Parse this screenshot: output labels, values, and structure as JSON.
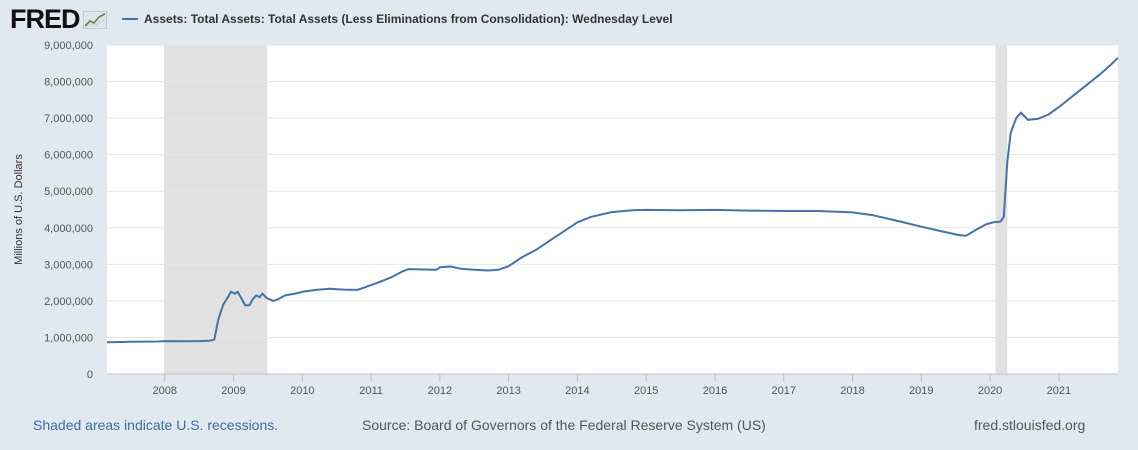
{
  "header": {
    "logo_text": "FRED",
    "legend_label": "Assets: Total Assets: Total Assets (Less Eliminations from Consolidation): Wednesday Level"
  },
  "footer": {
    "recession_note": "Shaded areas indicate U.S. recessions.",
    "source": "Source: Board of Governors of the Federal Reserve System (US)",
    "site": "fred.stlouisfed.org"
  },
  "colors": {
    "series": "#4572a7",
    "recession": "#e1e1e1",
    "background": "#e1e9f0"
  },
  "chart_data": {
    "type": "line",
    "title": "",
    "xlabel": "",
    "ylabel": "Millions of U.S. Dollars",
    "xlim": [
      2007.16,
      2021.86
    ],
    "ylim": [
      0,
      9000000
    ],
    "grid": true,
    "y_ticks": [
      {
        "value": 0,
        "label": "0"
      },
      {
        "value": 1000000,
        "label": "1,000,000"
      },
      {
        "value": 2000000,
        "label": "2,000,000"
      },
      {
        "value": 3000000,
        "label": "3,000,000"
      },
      {
        "value": 4000000,
        "label": "4,000,000"
      },
      {
        "value": 5000000,
        "label": "5,000,000"
      },
      {
        "value": 6000000,
        "label": "6,000,000"
      },
      {
        "value": 7000000,
        "label": "7,000,000"
      },
      {
        "value": 8000000,
        "label": "8,000,000"
      },
      {
        "value": 9000000,
        "label": "9,000,000"
      }
    ],
    "x_ticks": [
      {
        "value": 2008,
        "label": "2008"
      },
      {
        "value": 2009,
        "label": "2009"
      },
      {
        "value": 2010,
        "label": "2010"
      },
      {
        "value": 2011,
        "label": "2011"
      },
      {
        "value": 2012,
        "label": "2012"
      },
      {
        "value": 2013,
        "label": "2013"
      },
      {
        "value": 2014,
        "label": "2014"
      },
      {
        "value": 2015,
        "label": "2015"
      },
      {
        "value": 2016,
        "label": "2016"
      },
      {
        "value": 2017,
        "label": "2017"
      },
      {
        "value": 2018,
        "label": "2018"
      },
      {
        "value": 2019,
        "label": "2019"
      },
      {
        "value": 2020,
        "label": "2020"
      },
      {
        "value": 2021,
        "label": "2021"
      }
    ],
    "recessions": [
      {
        "start": 2007.99,
        "end": 2009.49
      },
      {
        "start": 2020.08,
        "end": 2020.25
      }
    ],
    "series": [
      {
        "name": "Assets: Total Assets: Total Assets (Less Eliminations from Consolidation): Wednesday Level",
        "points": [
          [
            2007.16,
            870000
          ],
          [
            2007.5,
            880000
          ],
          [
            2007.9,
            890000
          ],
          [
            2008.0,
            900000
          ],
          [
            2008.3,
            895000
          ],
          [
            2008.5,
            900000
          ],
          [
            2008.65,
            910000
          ],
          [
            2008.72,
            940000
          ],
          [
            2008.78,
            1500000
          ],
          [
            2008.85,
            1900000
          ],
          [
            2008.92,
            2100000
          ],
          [
            2008.96,
            2250000
          ],
          [
            2009.02,
            2200000
          ],
          [
            2009.06,
            2250000
          ],
          [
            2009.12,
            2050000
          ],
          [
            2009.17,
            1880000
          ],
          [
            2009.23,
            1880000
          ],
          [
            2009.28,
            2050000
          ],
          [
            2009.33,
            2150000
          ],
          [
            2009.38,
            2100000
          ],
          [
            2009.42,
            2200000
          ],
          [
            2009.48,
            2080000
          ],
          [
            2009.58,
            2000000
          ],
          [
            2009.65,
            2050000
          ],
          [
            2009.75,
            2150000
          ],
          [
            2009.9,
            2200000
          ],
          [
            2010.0,
            2250000
          ],
          [
            2010.2,
            2300000
          ],
          [
            2010.4,
            2330000
          ],
          [
            2010.6,
            2310000
          ],
          [
            2010.8,
            2300000
          ],
          [
            2010.95,
            2400000
          ],
          [
            2011.1,
            2500000
          ],
          [
            2011.3,
            2650000
          ],
          [
            2011.45,
            2800000
          ],
          [
            2011.55,
            2870000
          ],
          [
            2011.75,
            2860000
          ],
          [
            2011.95,
            2850000
          ],
          [
            2012.0,
            2920000
          ],
          [
            2012.15,
            2940000
          ],
          [
            2012.3,
            2880000
          ],
          [
            2012.5,
            2850000
          ],
          [
            2012.7,
            2830000
          ],
          [
            2012.85,
            2850000
          ],
          [
            2013.0,
            2950000
          ],
          [
            2013.2,
            3200000
          ],
          [
            2013.4,
            3400000
          ],
          [
            2013.6,
            3650000
          ],
          [
            2013.8,
            3900000
          ],
          [
            2014.0,
            4150000
          ],
          [
            2014.2,
            4300000
          ],
          [
            2014.5,
            4430000
          ],
          [
            2014.8,
            4480000
          ],
          [
            2015.0,
            4490000
          ],
          [
            2015.5,
            4480000
          ],
          [
            2016.0,
            4490000
          ],
          [
            2016.5,
            4470000
          ],
          [
            2017.0,
            4460000
          ],
          [
            2017.5,
            4460000
          ],
          [
            2018.0,
            4420000
          ],
          [
            2018.3,
            4340000
          ],
          [
            2018.7,
            4170000
          ],
          [
            2019.0,
            4030000
          ],
          [
            2019.3,
            3900000
          ],
          [
            2019.55,
            3800000
          ],
          [
            2019.65,
            3780000
          ],
          [
            2019.8,
            3950000
          ],
          [
            2019.95,
            4100000
          ],
          [
            2020.05,
            4150000
          ],
          [
            2020.15,
            4170000
          ],
          [
            2020.2,
            4300000
          ],
          [
            2020.25,
            5800000
          ],
          [
            2020.3,
            6600000
          ],
          [
            2020.38,
            7000000
          ],
          [
            2020.45,
            7150000
          ],
          [
            2020.55,
            6950000
          ],
          [
            2020.7,
            6980000
          ],
          [
            2020.85,
            7100000
          ],
          [
            2021.0,
            7300000
          ],
          [
            2021.2,
            7600000
          ],
          [
            2021.4,
            7900000
          ],
          [
            2021.6,
            8200000
          ],
          [
            2021.75,
            8450000
          ],
          [
            2021.86,
            8650000
          ]
        ]
      }
    ]
  }
}
